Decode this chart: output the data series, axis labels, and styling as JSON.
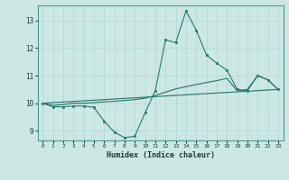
{
  "xlabel": "Humidex (Indice chaleur)",
  "background_color": "#cce8e4",
  "grid_color": "#b0d8d4",
  "line_color": "#2a7a6a",
  "xlim": [
    -0.5,
    23.5
  ],
  "ylim": [
    8.65,
    13.55
  ],
  "yticks": [
    9,
    10,
    11,
    12,
    13
  ],
  "xticks": [
    0,
    1,
    2,
    3,
    4,
    5,
    6,
    7,
    8,
    9,
    10,
    11,
    12,
    13,
    14,
    15,
    16,
    17,
    18,
    19,
    20,
    21,
    22,
    23
  ],
  "series1_x": [
    0,
    1,
    2,
    3,
    4,
    5,
    6,
    7,
    8,
    9,
    10,
    11,
    12,
    13,
    14,
    15,
    16,
    17,
    18,
    19,
    20,
    21,
    22,
    23
  ],
  "series1_y": [
    10.0,
    9.87,
    9.87,
    9.9,
    9.9,
    9.85,
    9.35,
    8.95,
    8.75,
    8.8,
    9.65,
    10.45,
    12.3,
    12.2,
    13.35,
    12.65,
    11.75,
    11.45,
    11.2,
    10.5,
    10.45,
    11.0,
    10.85,
    10.5
  ],
  "series2_x": [
    0,
    1,
    2,
    3,
    4,
    5,
    6,
    7,
    8,
    9,
    10,
    11,
    12,
    13,
    14,
    15,
    16,
    17,
    18,
    19,
    20,
    21,
    22,
    23
  ],
  "series2_y": [
    10.0,
    9.92,
    9.95,
    10.0,
    10.0,
    10.02,
    10.05,
    10.07,
    10.1,
    10.13,
    10.18,
    10.28,
    10.4,
    10.52,
    10.6,
    10.68,
    10.75,
    10.82,
    10.9,
    10.45,
    10.5,
    11.0,
    10.85,
    10.5
  ],
  "series3_x": [
    0,
    23
  ],
  "series3_y": [
    10.0,
    10.5
  ]
}
